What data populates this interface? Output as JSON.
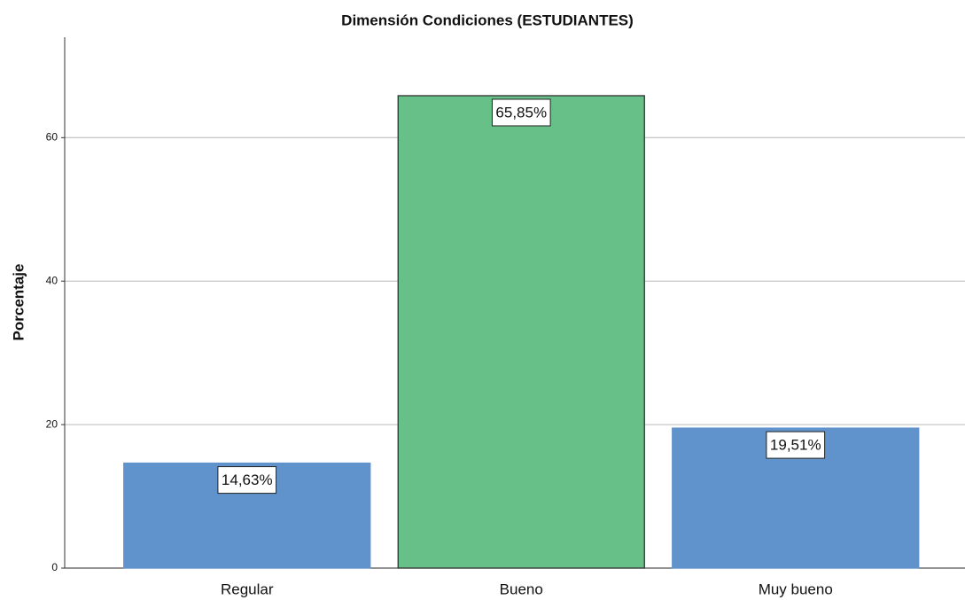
{
  "chart_data": {
    "type": "bar",
    "title": "Dimensión Condiciones (ESTUDIANTES)",
    "y_label": "Porcentaje",
    "categories": [
      "Regular",
      "Bueno",
      "Muy bueno"
    ],
    "values": [
      14.63,
      65.85,
      19.51
    ],
    "value_labels": [
      "14,63%",
      "65,85%",
      "19,51%"
    ],
    "colors": [
      "#6092cc",
      "#66c087",
      "#6092cc"
    ],
    "edgecolors": [
      "#6092cc",
      "#333333",
      "#6092cc"
    ],
    "ylim": [
      0,
      74
    ],
    "yticks": [
      0,
      20,
      40,
      60
    ],
    "grid": true
  }
}
